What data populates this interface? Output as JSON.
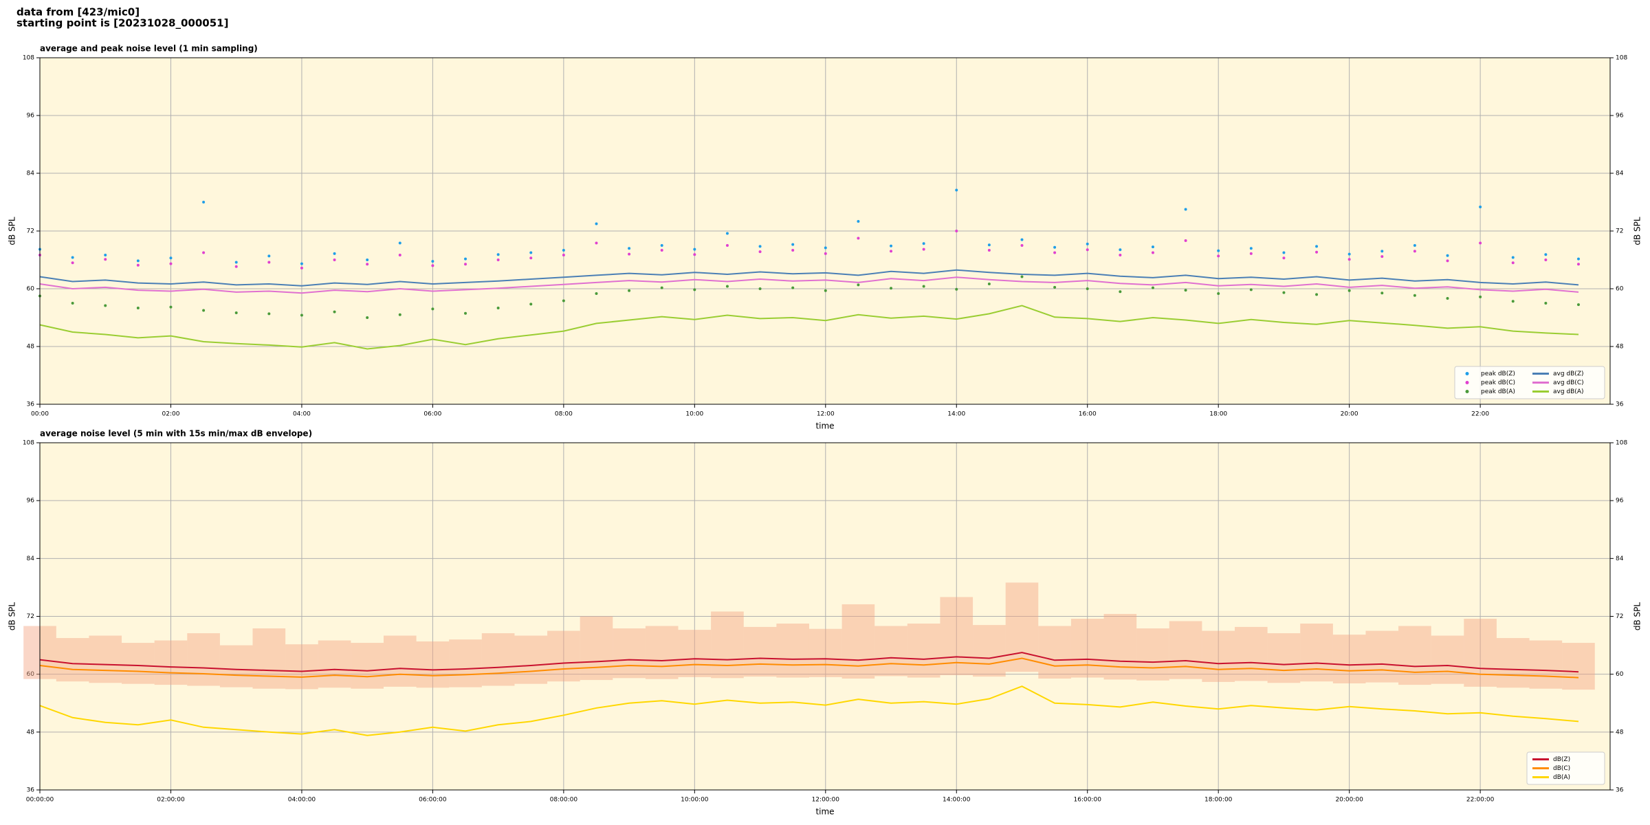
{
  "header": [
    "data from [423/mic0]",
    "starting point is [20231028_000051]"
  ],
  "chart_data": [
    {
      "type": "line",
      "title": "average and peak noise level (1 min sampling)",
      "xlabel": "time",
      "ylabel": "dB SPL",
      "background": "#fff7dc",
      "grid": true,
      "legend": "lower right",
      "legend_columns": 2,
      "xlim": [
        0,
        1439
      ],
      "ylim": [
        36,
        108
      ],
      "yticks": [
        36,
        48,
        60,
        72,
        84,
        96,
        108
      ],
      "xticks": [
        {
          "value": 0,
          "label": "00:00"
        },
        {
          "value": 120,
          "label": "02:00"
        },
        {
          "value": 240,
          "label": "04:00"
        },
        {
          "value": 360,
          "label": "06:00"
        },
        {
          "value": 480,
          "label": "08:00"
        },
        {
          "value": 600,
          "label": "10:00"
        },
        {
          "value": 720,
          "label": "12:00"
        },
        {
          "value": 840,
          "label": "14:00"
        },
        {
          "value": 960,
          "label": "16:00"
        },
        {
          "value": 1080,
          "label": "18:00"
        },
        {
          "value": 1200,
          "label": "20:00"
        },
        {
          "value": 1320,
          "label": "22:00"
        }
      ],
      "x": [
        0,
        30,
        60,
        90,
        120,
        150,
        180,
        210,
        240,
        270,
        300,
        330,
        360,
        390,
        420,
        450,
        480,
        510,
        540,
        570,
        600,
        630,
        660,
        690,
        720,
        750,
        780,
        810,
        840,
        870,
        900,
        930,
        960,
        990,
        1020,
        1050,
        1080,
        1110,
        1140,
        1170,
        1200,
        1230,
        1260,
        1290,
        1320,
        1350,
        1380,
        1410
      ],
      "series": [
        {
          "name": "peak dB(Z)",
          "kind": "scatter",
          "color": "#1f9ee8",
          "values": [
            68.2,
            66.5,
            67.0,
            65.8,
            66.4,
            78.0,
            65.5,
            66.8,
            65.2,
            67.3,
            66.0,
            69.5,
            65.7,
            66.2,
            67.1,
            67.5,
            68.0,
            73.5,
            68.4,
            69.0,
            68.2,
            71.5,
            68.8,
            69.2,
            68.5,
            74.0,
            68.9,
            69.4,
            80.5,
            69.1,
            70.2,
            68.6,
            69.3,
            68.1,
            68.7,
            76.5,
            67.9,
            68.4,
            67.5,
            68.8,
            67.2,
            67.8,
            69.0,
            66.9,
            77.0,
            66.5,
            67.1,
            66.2
          ]
        },
        {
          "name": "peak dB(C)",
          "kind": "scatter",
          "color": "#e040d0",
          "values": [
            67.0,
            65.4,
            66.1,
            64.9,
            65.2,
            67.5,
            64.6,
            65.5,
            64.3,
            66.0,
            65.1,
            67.0,
            64.8,
            65.1,
            66.0,
            66.4,
            67.0,
            69.5,
            67.2,
            68.0,
            67.1,
            69.0,
            67.7,
            68.0,
            67.3,
            70.5,
            67.8,
            68.2,
            72.0,
            68.0,
            69.0,
            67.5,
            68.1,
            67.0,
            67.5,
            70.0,
            66.8,
            67.3,
            66.4,
            67.6,
            66.1,
            66.7,
            67.8,
            65.8,
            69.5,
            65.4,
            66.0,
            65.1
          ]
        },
        {
          "name": "peak dB(A)",
          "kind": "scatter",
          "color": "#4a9a3a",
          "values": [
            58.5,
            57.0,
            56.5,
            56.0,
            56.2,
            55.5,
            55.0,
            54.8,
            54.5,
            55.2,
            54.0,
            54.6,
            55.8,
            54.9,
            56.0,
            56.8,
            57.5,
            59.0,
            59.6,
            60.2,
            59.8,
            60.5,
            60.0,
            60.2,
            59.6,
            60.8,
            60.1,
            60.5,
            59.9,
            61.0,
            62.5,
            60.3,
            60.0,
            59.4,
            60.2,
            59.7,
            59.0,
            59.8,
            59.2,
            58.8,
            59.6,
            59.1,
            58.6,
            58.0,
            58.3,
            57.4,
            57.0,
            56.7
          ]
        },
        {
          "name": "avg dB(Z)",
          "kind": "line",
          "color": "#4a7fb5",
          "values": [
            62.5,
            61.5,
            61.8,
            61.2,
            61.0,
            61.4,
            60.8,
            61.0,
            60.6,
            61.2,
            60.9,
            61.5,
            61.0,
            61.3,
            61.6,
            62.0,
            62.4,
            62.8,
            63.2,
            62.9,
            63.4,
            63.0,
            63.5,
            63.1,
            63.3,
            62.8,
            63.6,
            63.2,
            63.9,
            63.4,
            63.0,
            62.8,
            63.2,
            62.6,
            62.3,
            62.8,
            62.1,
            62.4,
            62.0,
            62.5,
            61.8,
            62.2,
            61.6,
            61.9,
            61.3,
            61.0,
            61.4,
            60.8
          ]
        },
        {
          "name": "avg dB(C)",
          "kind": "line",
          "color": "#e070d0",
          "values": [
            61.0,
            60.0,
            60.3,
            59.7,
            59.5,
            59.9,
            59.3,
            59.5,
            59.1,
            59.7,
            59.4,
            60.0,
            59.5,
            59.8,
            60.1,
            60.5,
            60.9,
            61.3,
            61.7,
            61.4,
            61.9,
            61.5,
            62.0,
            61.6,
            61.8,
            61.3,
            62.1,
            61.7,
            62.4,
            61.9,
            61.5,
            61.3,
            61.7,
            61.1,
            60.8,
            61.3,
            60.6,
            60.9,
            60.5,
            61.0,
            60.3,
            60.7,
            60.1,
            60.4,
            59.8,
            59.5,
            59.9,
            59.3
          ]
        },
        {
          "name": "avg dB(A)",
          "kind": "line",
          "color": "#9acd32",
          "values": [
            52.5,
            51.0,
            50.5,
            49.8,
            50.2,
            49.0,
            48.6,
            48.3,
            47.9,
            48.8,
            47.5,
            48.2,
            49.5,
            48.4,
            49.6,
            50.4,
            51.2,
            52.8,
            53.5,
            54.2,
            53.6,
            54.5,
            53.8,
            54.0,
            53.4,
            54.6,
            53.9,
            54.3,
            53.7,
            54.8,
            56.5,
            54.1,
            53.8,
            53.2,
            54.0,
            53.5,
            52.8,
            53.6,
            53.0,
            52.6,
            53.4,
            52.9,
            52.4,
            51.8,
            52.1,
            51.2,
            50.8,
            50.5
          ]
        }
      ]
    },
    {
      "type": "line",
      "title": "average noise level (5 min with 15s min/max dB envelope)",
      "xlabel": "time",
      "ylabel": "dB SPL",
      "background": "#fff7dc",
      "grid": true,
      "legend": "lower right",
      "legend_columns": 1,
      "xlim": [
        0,
        1439
      ],
      "ylim": [
        36,
        108
      ],
      "yticks": [
        36,
        48,
        60,
        72,
        84,
        96,
        108
      ],
      "xticks": [
        {
          "value": 0,
          "label": "00:00:00"
        },
        {
          "value": 120,
          "label": "02:00:00"
        },
        {
          "value": 240,
          "label": "04:00:00"
        },
        {
          "value": 360,
          "label": "06:00:00"
        },
        {
          "value": 480,
          "label": "08:00:00"
        },
        {
          "value": 600,
          "label": "10:00:00"
        },
        {
          "value": 720,
          "label": "12:00:00"
        },
        {
          "value": 840,
          "label": "14:00:00"
        },
        {
          "value": 960,
          "label": "16:00:00"
        },
        {
          "value": 1080,
          "label": "18:00:00"
        },
        {
          "value": 1200,
          "label": "20:00:00"
        },
        {
          "value": 1320,
          "label": "22:00:00"
        }
      ],
      "x": [
        0,
        30,
        60,
        90,
        120,
        150,
        180,
        210,
        240,
        270,
        300,
        330,
        360,
        390,
        420,
        450,
        480,
        510,
        540,
        570,
        600,
        630,
        660,
        690,
        720,
        750,
        780,
        810,
        840,
        870,
        900,
        930,
        960,
        990,
        1020,
        1050,
        1080,
        1110,
        1140,
        1170,
        1200,
        1230,
        1260,
        1290,
        1320,
        1350,
        1380,
        1410
      ],
      "envelope": {
        "color": "#f4a582",
        "low": [
          59.0,
          58.5,
          58.2,
          58.0,
          57.8,
          57.6,
          57.3,
          57.0,
          56.9,
          57.2,
          57.0,
          57.4,
          57.2,
          57.3,
          57.6,
          58.0,
          58.5,
          58.8,
          59.2,
          59.0,
          59.4,
          59.2,
          59.5,
          59.3,
          59.4,
          59.1,
          59.6,
          59.3,
          59.8,
          59.5,
          60.5,
          59.1,
          59.3,
          58.9,
          58.7,
          59.0,
          58.4,
          58.6,
          58.2,
          58.5,
          58.1,
          58.3,
          57.8,
          58.0,
          57.4,
          57.2,
          57.0,
          56.8
        ],
        "high": [
          70.0,
          67.5,
          68.0,
          66.5,
          67.0,
          68.5,
          66.0,
          69.5,
          66.2,
          67.0,
          66.5,
          68.0,
          66.8,
          67.2,
          68.5,
          68.0,
          69.0,
          72.0,
          69.5,
          70.0,
          69.2,
          73.0,
          69.8,
          70.5,
          69.4,
          74.5,
          70.0,
          70.5,
          76.0,
          70.2,
          79.0,
          70.0,
          71.5,
          72.5,
          69.5,
          71.0,
          69.0,
          69.8,
          68.5,
          70.5,
          68.2,
          69.0,
          70.0,
          68.0,
          71.5,
          67.5,
          67.0,
          66.5
        ]
      },
      "series": [
        {
          "name": "dB(Z)",
          "kind": "line",
          "color": "#c8102e",
          "values": [
            63.0,
            62.2,
            62.0,
            61.8,
            61.5,
            61.3,
            61.0,
            60.8,
            60.6,
            61.0,
            60.7,
            61.2,
            60.9,
            61.1,
            61.4,
            61.8,
            62.3,
            62.6,
            63.0,
            62.8,
            63.2,
            63.0,
            63.3,
            63.1,
            63.2,
            62.9,
            63.4,
            63.1,
            63.6,
            63.3,
            64.5,
            62.9,
            63.1,
            62.7,
            62.5,
            62.8,
            62.2,
            62.4,
            62.0,
            62.3,
            61.9,
            62.1,
            61.6,
            61.8,
            61.2,
            61.0,
            60.8,
            60.5
          ]
        },
        {
          "name": "dB(C)",
          "kind": "line",
          "color": "#ff8c00",
          "values": [
            61.8,
            61.0,
            60.8,
            60.6,
            60.3,
            60.1,
            59.8,
            59.6,
            59.4,
            59.8,
            59.5,
            60.0,
            59.7,
            59.9,
            60.2,
            60.6,
            61.1,
            61.4,
            61.8,
            61.6,
            62.0,
            61.8,
            62.1,
            61.9,
            62.0,
            61.7,
            62.2,
            61.9,
            62.4,
            62.1,
            63.3,
            61.7,
            61.9,
            61.5,
            61.3,
            61.6,
            61.0,
            61.2,
            60.8,
            61.1,
            60.7,
            60.9,
            60.4,
            60.6,
            60.0,
            59.8,
            59.6,
            59.3
          ]
        },
        {
          "name": "dB(A)",
          "kind": "line",
          "color": "#ffd700",
          "values": [
            53.5,
            51.0,
            50.0,
            49.5,
            50.5,
            49.0,
            48.5,
            48.0,
            47.6,
            48.5,
            47.3,
            48.0,
            49.0,
            48.2,
            49.5,
            50.2,
            51.5,
            53.0,
            54.0,
            54.5,
            53.8,
            54.6,
            54.0,
            54.2,
            53.6,
            54.8,
            54.0,
            54.3,
            53.8,
            54.9,
            57.5,
            54.0,
            53.7,
            53.2,
            54.2,
            53.4,
            52.8,
            53.5,
            53.0,
            52.6,
            53.3,
            52.8,
            52.4,
            51.8,
            52.0,
            51.3,
            50.8,
            50.2
          ]
        }
      ]
    }
  ]
}
